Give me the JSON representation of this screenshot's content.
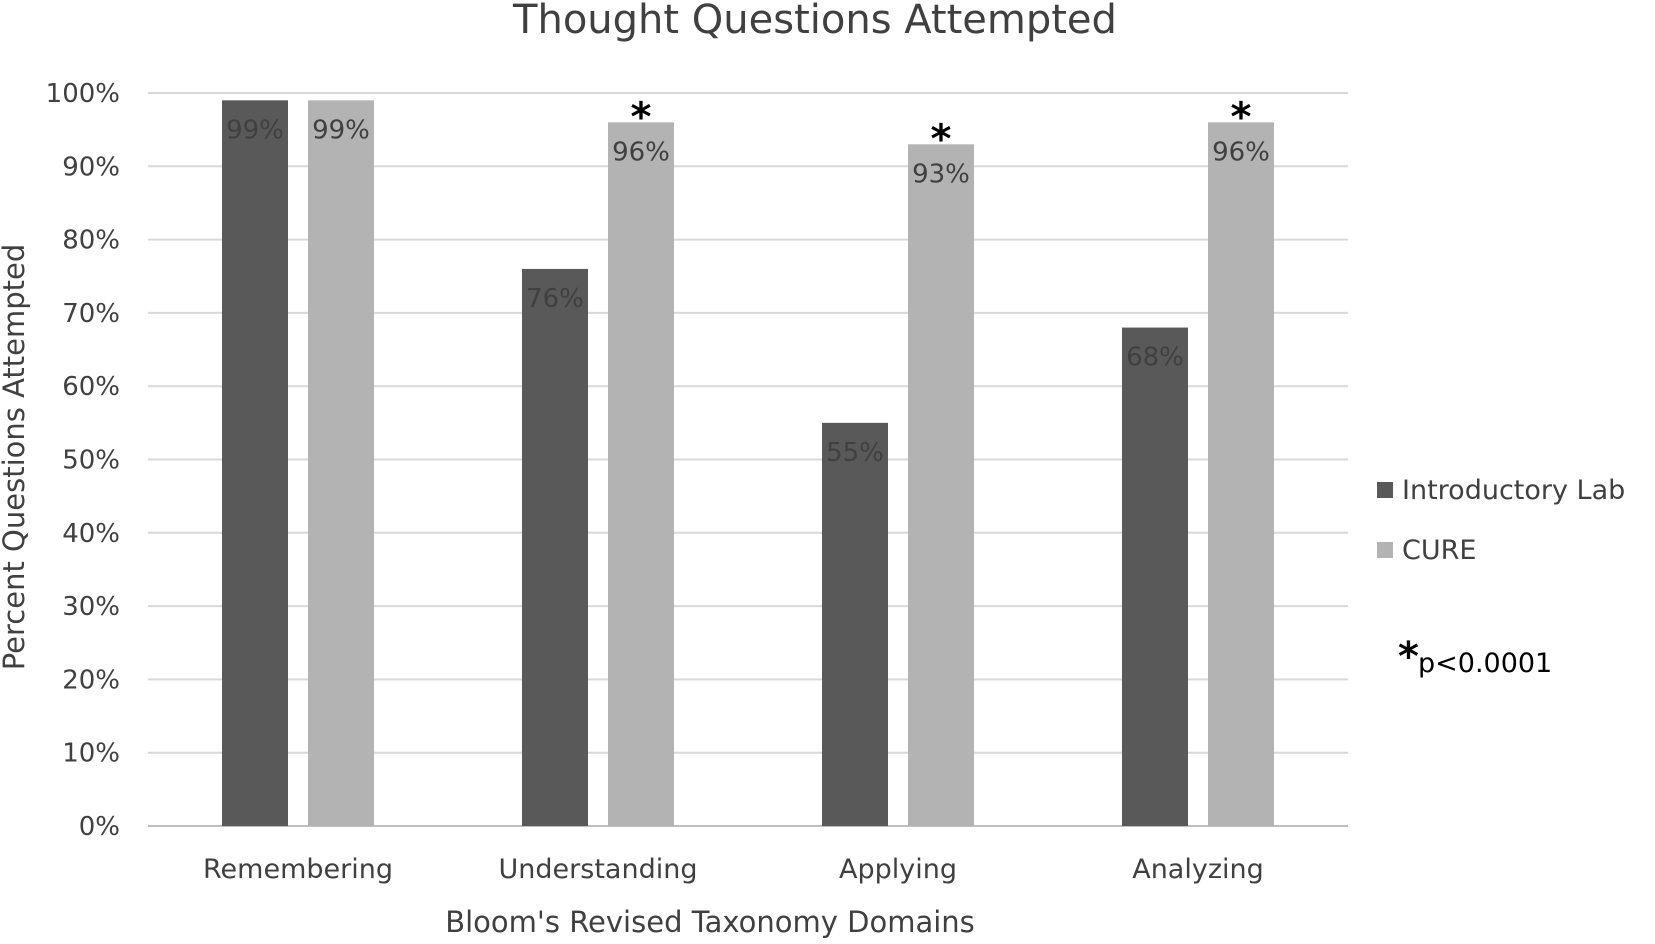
{
  "chart_data": {
    "type": "bar",
    "title": "Thought Questions Attempted",
    "xlabel": "Bloom's Revised Taxonomy Domains",
    "ylabel": "Percent Questions Attempted",
    "ylim": [
      0,
      100
    ],
    "yticks": [
      "0%",
      "10%",
      "20%",
      "30%",
      "40%",
      "50%",
      "60%",
      "70%",
      "80%",
      "90%",
      "100%"
    ],
    "grid": true,
    "legend_position": "right",
    "categories": [
      "Remembering",
      "Understanding",
      "Applying",
      "Analyzing"
    ],
    "series": [
      {
        "name": "Introductory Lab",
        "color": "#595959",
        "values": [
          99,
          76,
          55,
          68
        ],
        "labels": [
          "99%",
          "76%",
          "55%",
          "68%"
        ]
      },
      {
        "name": "CURE",
        "color": "#b3b3b3",
        "values": [
          99,
          96,
          93,
          96
        ],
        "labels": [
          "99%",
          "96%",
          "93%",
          "96%"
        ]
      }
    ],
    "significance_marker": "*",
    "significant": [
      false,
      true,
      true,
      true
    ],
    "annotation": {
      "marker": "*",
      "text": "p<0.0001"
    }
  }
}
